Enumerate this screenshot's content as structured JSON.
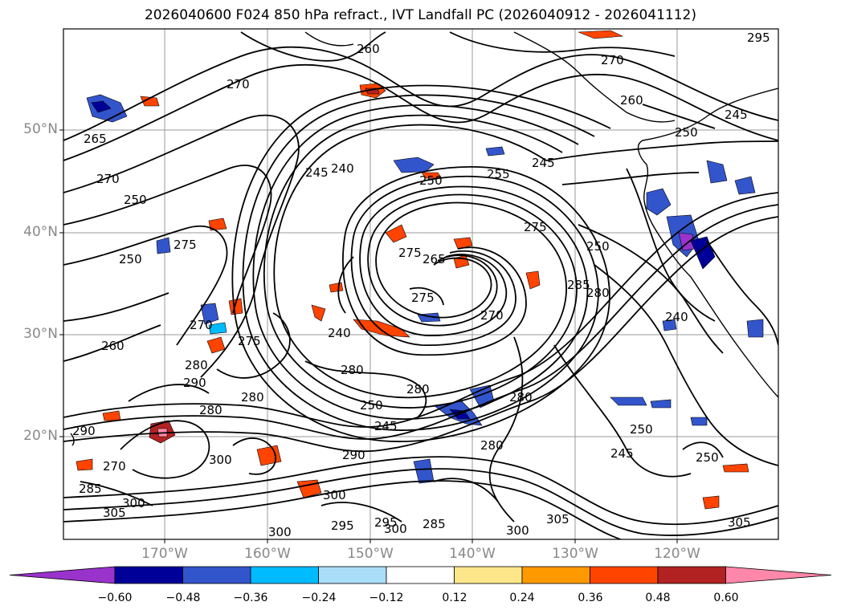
{
  "title": "2026040600 F024 850 hPa refract., IVT Landfall PC (2026040912 - 2026041112)",
  "lat_labels": [
    "50°N",
    "40°N",
    "30°N",
    "20°N"
  ],
  "lon_labels": [
    "170°W",
    "160°W",
    "150°W",
    "140°W",
    "130°W",
    "120°W"
  ],
  "colorbar": {
    "colors": [
      "#9933cc",
      "#000099",
      "#3355cc",
      "#00bbff",
      "#aaddf7",
      "#ffffff",
      "#fde68a",
      "#ff9900",
      "#ff4400",
      "#b22222",
      "#ff88aa"
    ],
    "ticks": [
      "−0.60",
      "−0.48",
      "−0.36",
      "−0.24",
      "−0.12",
      "0.12",
      "0.24",
      "0.36",
      "0.48",
      "0.60"
    ]
  },
  "contour_labels": [
    "260",
    "270",
    "240",
    "265",
    "260",
    "270",
    "250",
    "270",
    "250",
    "275",
    "245",
    "250",
    "255",
    "245",
    "275",
    "265",
    "275",
    "285",
    "280",
    "270",
    "250",
    "275",
    "240",
    "270",
    "240",
    "280",
    "280",
    "250",
    "245",
    "260",
    "280",
    "280",
    "280",
    "250",
    "245",
    "280",
    "250",
    "280",
    "290",
    "270",
    "285",
    "305",
    "300",
    "300",
    "295",
    "290",
    "300",
    "305",
    "300",
    "295",
    "305",
    "300",
    "285",
    "245",
    "250",
    "275",
    "300",
    "290",
    "295"
  ],
  "fills": {
    "negative_colors": [
      "#3355cc",
      "#00bbff",
      "#000099",
      "#9933cc"
    ],
    "positive_colors": [
      "#ff9900",
      "#ff4400",
      "#b22222",
      "#ff88aa"
    ]
  }
}
